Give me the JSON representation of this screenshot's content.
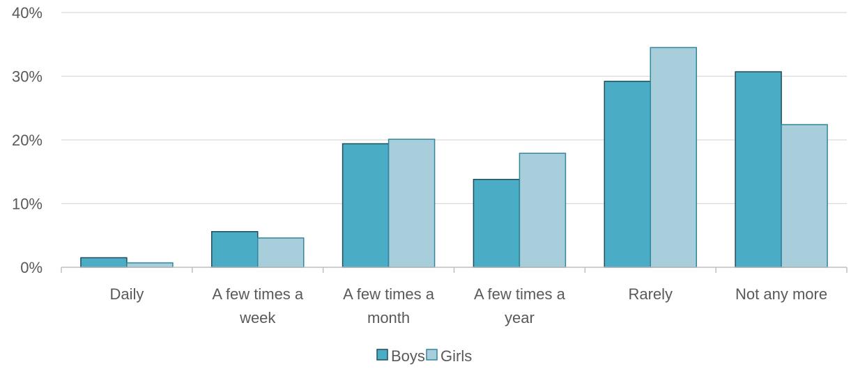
{
  "chart_data": {
    "type": "bar",
    "categories": [
      "Daily",
      "A few times a week",
      "A few times a month",
      "A few times a year",
      "Rarely",
      "Not any more"
    ],
    "category_label_lines": [
      [
        "Daily"
      ],
      [
        "A few times a",
        "week"
      ],
      [
        "A few times a",
        "month"
      ],
      [
        "A few times a",
        "year"
      ],
      [
        "Rarely"
      ],
      [
        "Not any more"
      ]
    ],
    "series": [
      {
        "name": "Boys",
        "values": [
          1.5,
          5.6,
          19.4,
          13.8,
          29.2,
          30.7
        ],
        "color": "#4BACC6",
        "stroke": "#1F4E5A"
      },
      {
        "name": "Girls",
        "values": [
          0.7,
          4.6,
          20.1,
          17.9,
          34.5,
          22.4
        ],
        "color": "#A8CEDB",
        "stroke": "#31859C"
      }
    ],
    "ylim": [
      0,
      40
    ],
    "yticks": [
      0,
      10,
      20,
      30,
      40
    ],
    "ytick_labels": [
      "0%",
      "10%",
      "20%",
      "30%",
      "40%"
    ],
    "ytick_format": "percent",
    "grid": true,
    "legend_position": "bottom",
    "title": "",
    "xlabel": "",
    "ylabel": ""
  }
}
